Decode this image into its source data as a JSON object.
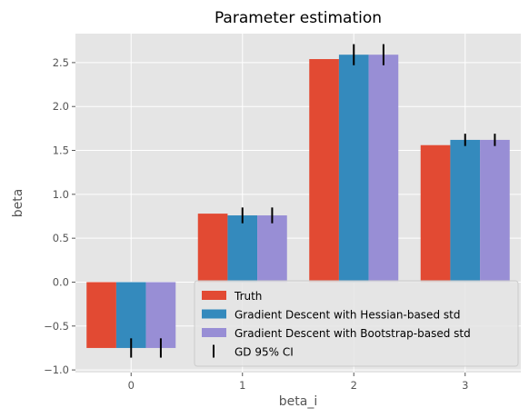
{
  "chart_data": {
    "type": "bar",
    "title": "Parameter estimation",
    "xlabel": "beta_i",
    "ylabel": "beta",
    "categories": [
      "0",
      "1",
      "2",
      "3"
    ],
    "ylim": [
      -1.03,
      2.83
    ],
    "yticks": [
      -1.0,
      -0.5,
      0.0,
      0.5,
      1.0,
      1.5,
      2.0,
      2.5
    ],
    "ytick_labels": [
      "−1.0",
      "−0.5",
      "0.0",
      "0.5",
      "1.0",
      "1.5",
      "2.0",
      "2.5"
    ],
    "series": [
      {
        "name": "Truth",
        "color": "#E24A33",
        "values": [
          -0.75,
          0.78,
          2.54,
          1.56
        ]
      },
      {
        "name": "Gradient Descent with Hessian-based std",
        "color": "#348ABD",
        "values": [
          -0.75,
          0.76,
          2.59,
          1.62
        ],
        "ci_half_width": [
          0.11,
          0.09,
          0.12,
          0.07
        ]
      },
      {
        "name": "Gradient Descent with Bootstrap-based std",
        "color": "#988ED5",
        "values": [
          -0.75,
          0.76,
          2.59,
          1.62
        ],
        "ci_half_width": [
          0.11,
          0.09,
          0.12,
          0.07
        ]
      }
    ],
    "errorbar_label": "GD 95% CI",
    "grid": true,
    "legend_position": "lower-right",
    "style": "ggplot"
  }
}
